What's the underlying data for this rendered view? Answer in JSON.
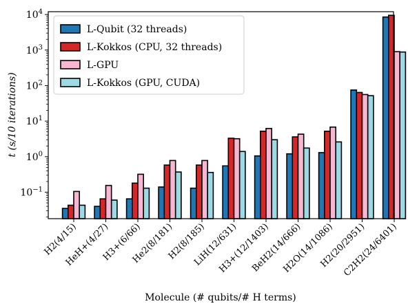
{
  "chart_data": {
    "type": "bar",
    "xlabel": "Molecule (# qubits/# H terms)",
    "ylabel": "t (s/10 iterations)",
    "yscale": "log",
    "ylim": [
      0.018,
      12000
    ],
    "yticks": [
      {
        "value": 0.1,
        "base": "10",
        "exp": "−1"
      },
      {
        "value": 1,
        "base": "10",
        "exp": "0"
      },
      {
        "value": 10,
        "base": "10",
        "exp": "1"
      },
      {
        "value": 100,
        "base": "10",
        "exp": "2"
      },
      {
        "value": 1000,
        "base": "10",
        "exp": "3"
      },
      {
        "value": 10000,
        "base": "10",
        "exp": "4"
      }
    ],
    "categories": [
      "H2(4/15)",
      "HeH+(4/27)",
      "H3+(6/66)",
      "He2(8/181)",
      "H2(8/185)",
      "LiH(12/631)",
      "H3+(12/1403)",
      "BeH2(14/666)",
      "H2O(14/1086)",
      "H2(20/2951)",
      "C2H2(24/6401)"
    ],
    "legend_position": "upper-left",
    "series": [
      {
        "name": "L-Qubit (32 threads)",
        "color": "#1f77b4",
        "values": [
          0.035,
          0.04,
          0.065,
          0.14,
          0.13,
          0.55,
          1.05,
          1.2,
          1.3,
          75,
          8500
        ]
      },
      {
        "name": "L-Kokkos (CPU, 32 threads)",
        "color": "#d62728",
        "values": [
          0.043,
          0.065,
          0.18,
          0.58,
          0.58,
          3.3,
          5.2,
          3.6,
          5.2,
          64,
          9500
        ]
      },
      {
        "name": "L-GPU",
        "color": "#f7b6d2",
        "values": [
          0.105,
          0.155,
          0.32,
          0.78,
          0.78,
          3.2,
          6.2,
          4.3,
          6.8,
          56,
          900
        ]
      },
      {
        "name": "L-Kokkos (GPU, CUDA)",
        "color": "#9edae5",
        "values": [
          0.043,
          0.06,
          0.13,
          0.37,
          0.36,
          1.4,
          3.0,
          1.75,
          2.6,
          52,
          880
        ]
      }
    ]
  }
}
